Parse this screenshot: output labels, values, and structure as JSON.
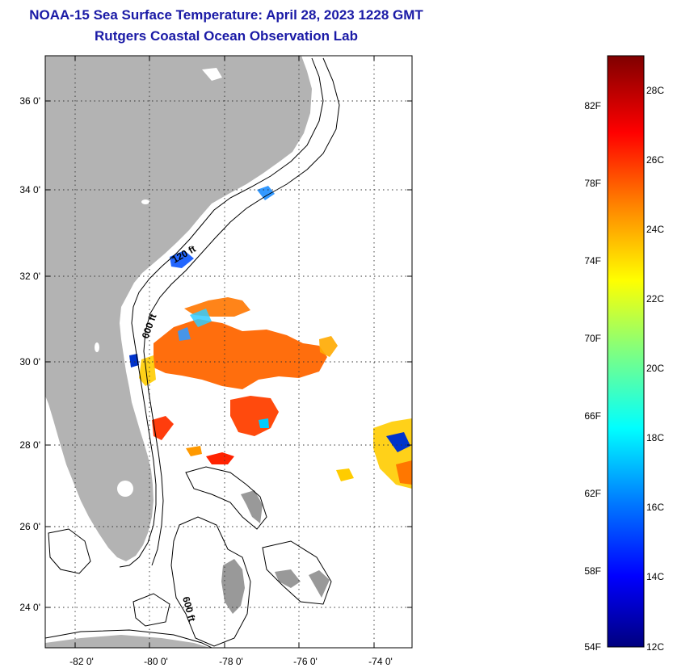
{
  "title_line1": "NOAA-15 Sea Surface Temperature:  April 28, 2023 1228 GMT",
  "title_line2": "Rutgers Coastal Ocean Observation Lab",
  "map": {
    "lat_labels": [
      "36 0'",
      "34 0'",
      "32 0'",
      "30 0'",
      "28 0'",
      "26 0'",
      "24 0'"
    ],
    "lon_labels": [
      "-82 0'",
      "-80 0'",
      "-78 0'",
      "-76 0'",
      "-74 0'"
    ],
    "contour_labels": [
      "120 ft",
      "600 ft",
      "600 ft"
    ]
  },
  "colorbar": {
    "fahrenheit_labels": [
      "82F",
      "78F",
      "74F",
      "70F",
      "66F",
      "62F",
      "58F",
      "54F"
    ],
    "celsius_labels": [
      "28C",
      "26C",
      "24C",
      "22C",
      "20C",
      "18C",
      "16C",
      "14C",
      "12C"
    ]
  },
  "colors": {
    "title": "#1a1aa6",
    "land": "#b3b3b3",
    "ocean": "#ffffff"
  }
}
